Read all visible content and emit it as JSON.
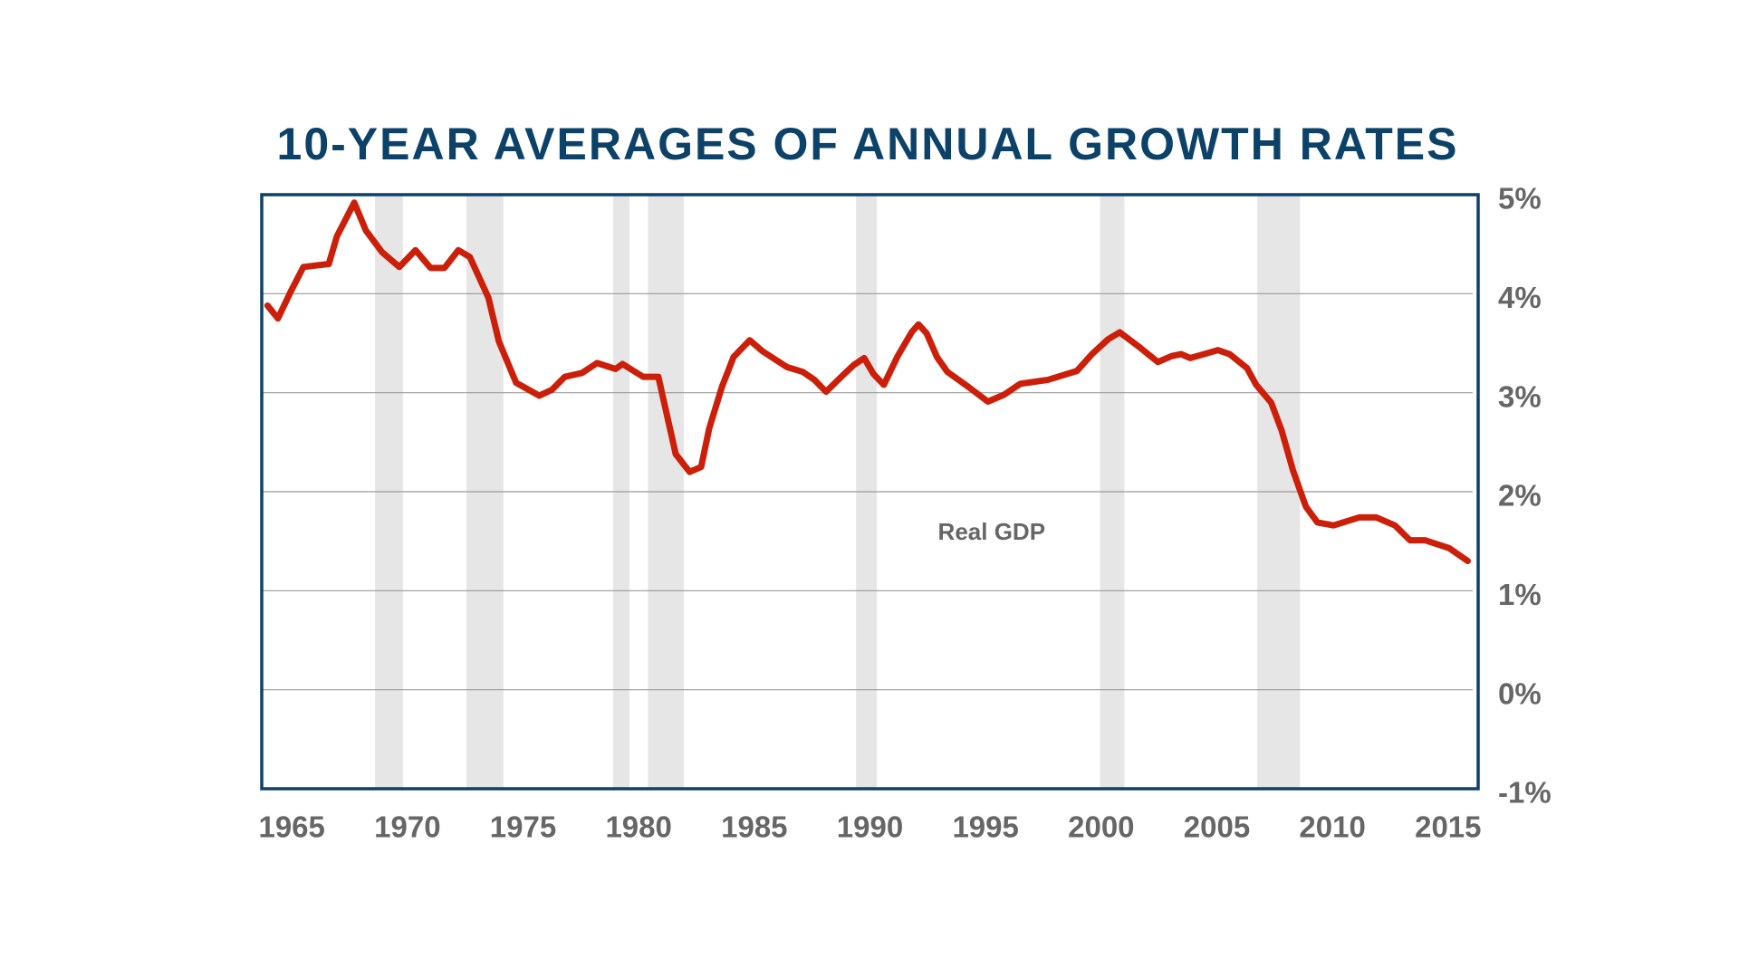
{
  "chart_data": {
    "type": "line",
    "title": "10-YEAR AVERAGES OF ANNUAL GROWTH RATES",
    "x": [
      1963.95,
      1964.4,
      1964.95,
      1965.5,
      1966.6,
      1966.95,
      1967.7,
      1968.2,
      1968.9,
      1969.65,
      1970.35,
      1971.0,
      1971.6,
      1972.2,
      1972.7,
      1973.5,
      1973.95,
      1974.7,
      1975.7,
      1976.25,
      1976.8,
      1977.55,
      1978.2,
      1979.0,
      1979.3,
      1980.2,
      1980.85,
      1981.6,
      1982.2,
      1982.7,
      1983.05,
      1983.6,
      1984.1,
      1984.8,
      1985.35,
      1986.4,
      1987.1,
      1987.6,
      1988.1,
      1988.8,
      1989.3,
      1989.75,
      1990.15,
      1990.6,
      1991.2,
      1991.8,
      1992.1,
      1992.45,
      1992.9,
      1993.35,
      1994.25,
      1995.1,
      1995.8,
      1996.5,
      1997.7,
      1998.95,
      1999.6,
      2000.3,
      2000.8,
      2001.6,
      2002.45,
      2003.05,
      2003.45,
      2003.85,
      2004.6,
      2005.05,
      2005.55,
      2006.3,
      2006.7,
      2007.35,
      2007.8,
      2008.3,
      2008.85,
      2009.35,
      2010.05,
      2011.15,
      2011.9,
      2012.7,
      2013.35,
      2014.0,
      2015.05,
      2015.85
    ],
    "series": [
      {
        "name": "Real GDP",
        "color": "#cc1f0a",
        "values": [
          3.88,
          3.75,
          4.02,
          4.27,
          4.3,
          4.58,
          4.92,
          4.64,
          4.42,
          4.27,
          4.44,
          4.26,
          4.26,
          4.44,
          4.37,
          3.96,
          3.52,
          3.1,
          2.97,
          3.03,
          3.16,
          3.2,
          3.3,
          3.24,
          3.29,
          3.16,
          3.16,
          2.38,
          2.2,
          2.25,
          2.64,
          3.06,
          3.36,
          3.53,
          3.42,
          3.26,
          3.21,
          3.13,
          3.01,
          3.17,
          3.28,
          3.35,
          3.19,
          3.08,
          3.37,
          3.61,
          3.69,
          3.6,
          3.36,
          3.21,
          3.06,
          2.91,
          2.98,
          3.09,
          3.13,
          3.22,
          3.39,
          3.54,
          3.61,
          3.47,
          3.31,
          3.37,
          3.39,
          3.35,
          3.4,
          3.43,
          3.39,
          3.25,
          3.08,
          2.9,
          2.62,
          2.21,
          1.85,
          1.69,
          1.66,
          1.74,
          1.74,
          1.66,
          1.51,
          1.51,
          1.43,
          1.3
        ]
      }
    ],
    "recessions": [
      [
        1968.6,
        1969.8
      ],
      [
        1972.55,
        1974.15
      ],
      [
        1978.9,
        1979.6
      ],
      [
        1980.4,
        1981.95
      ],
      [
        1989.4,
        1990.3
      ],
      [
        1999.95,
        2001.0
      ],
      [
        2006.75,
        2008.6
      ]
    ],
    "recession_color": "#e6e6e6",
    "xlim": [
      1963.7,
      2016.3
    ],
    "xticks": [
      1965,
      1970,
      1975,
      1980,
      1985,
      1990,
      1995,
      2000,
      2005,
      2010,
      2015
    ],
    "ylim": [
      -1,
      5
    ],
    "yticks": [
      {
        "value": 5,
        "label": "5%"
      },
      {
        "value": 4,
        "label": "4%"
      },
      {
        "value": 3,
        "label": "3%"
      },
      {
        "value": 2,
        "label": "2%"
      },
      {
        "value": 1,
        "label": "1%"
      },
      {
        "value": 0,
        "label": "0%"
      },
      {
        "value": -1,
        "label": "-1%"
      }
    ],
    "y_axis_side": "right",
    "grid": true
  }
}
